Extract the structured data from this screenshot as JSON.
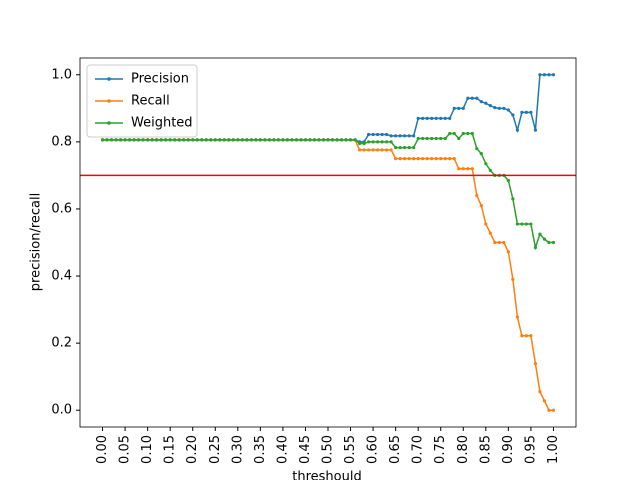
{
  "chart_data": {
    "type": "line",
    "xlabel": "threshould",
    "ylabel": "precision/recall",
    "x": [
      0,
      0.01,
      0.02,
      0.03,
      0.04,
      0.05,
      0.06,
      0.07,
      0.08,
      0.09,
      0.1,
      0.11,
      0.12,
      0.13,
      0.14,
      0.15,
      0.16,
      0.17,
      0.18,
      0.19,
      0.2,
      0.21,
      0.22,
      0.23,
      0.24,
      0.25,
      0.26,
      0.27,
      0.28,
      0.29,
      0.3,
      0.31,
      0.32,
      0.33,
      0.34,
      0.35,
      0.36,
      0.37,
      0.38,
      0.39,
      0.4,
      0.41,
      0.42,
      0.43,
      0.44,
      0.45,
      0.46,
      0.47,
      0.48,
      0.49,
      0.5,
      0.51,
      0.52,
      0.53,
      0.54,
      0.55,
      0.56,
      0.57,
      0.58,
      0.59,
      0.6,
      0.61,
      0.62,
      0.63,
      0.64,
      0.65,
      0.66,
      0.67,
      0.68,
      0.69,
      0.7,
      0.71,
      0.72,
      0.73,
      0.74,
      0.75,
      0.76,
      0.77,
      0.78,
      0.79,
      0.8,
      0.81,
      0.82,
      0.83,
      0.84,
      0.85,
      0.86,
      0.87,
      0.88,
      0.89,
      0.9,
      0.91,
      0.92,
      0.93,
      0.94,
      0.95,
      0.96,
      0.97,
      0.98,
      0.99,
      1
    ],
    "series": [
      {
        "name": "Precision",
        "color": "#1f77b4",
        "values": [
          0.806,
          0.806,
          0.806,
          0.806,
          0.806,
          0.806,
          0.806,
          0.806,
          0.806,
          0.806,
          0.806,
          0.806,
          0.806,
          0.806,
          0.806,
          0.806,
          0.806,
          0.806,
          0.806,
          0.806,
          0.806,
          0.806,
          0.806,
          0.806,
          0.806,
          0.806,
          0.806,
          0.806,
          0.806,
          0.806,
          0.806,
          0.806,
          0.806,
          0.806,
          0.806,
          0.806,
          0.806,
          0.806,
          0.806,
          0.806,
          0.806,
          0.806,
          0.806,
          0.806,
          0.806,
          0.806,
          0.806,
          0.806,
          0.806,
          0.806,
          0.806,
          0.806,
          0.806,
          0.806,
          0.806,
          0.806,
          0.806,
          0.8,
          0.8,
          0.822,
          0.822,
          0.822,
          0.822,
          0.822,
          0.818,
          0.818,
          0.818,
          0.818,
          0.818,
          0.818,
          0.87,
          0.87,
          0.87,
          0.87,
          0.87,
          0.87,
          0.87,
          0.87,
          0.9,
          0.9,
          0.9,
          0.93,
          0.93,
          0.93,
          0.92,
          0.915,
          0.908,
          0.902,
          0.9,
          0.9,
          0.895,
          0.88,
          0.835,
          0.888,
          0.888,
          0.888,
          0.835,
          1.0,
          1.0,
          1.0,
          1.0
        ]
      },
      {
        "name": "Recall",
        "color": "#ff7f0e",
        "values": [
          0.806,
          0.806,
          0.806,
          0.806,
          0.806,
          0.806,
          0.806,
          0.806,
          0.806,
          0.806,
          0.806,
          0.806,
          0.806,
          0.806,
          0.806,
          0.806,
          0.806,
          0.806,
          0.806,
          0.806,
          0.806,
          0.806,
          0.806,
          0.806,
          0.806,
          0.806,
          0.806,
          0.806,
          0.806,
          0.806,
          0.806,
          0.806,
          0.806,
          0.806,
          0.806,
          0.806,
          0.806,
          0.806,
          0.806,
          0.806,
          0.806,
          0.806,
          0.806,
          0.806,
          0.806,
          0.806,
          0.806,
          0.806,
          0.806,
          0.806,
          0.806,
          0.806,
          0.806,
          0.806,
          0.806,
          0.806,
          0.806,
          0.776,
          0.776,
          0.776,
          0.776,
          0.776,
          0.776,
          0.776,
          0.776,
          0.75,
          0.75,
          0.75,
          0.75,
          0.75,
          0.75,
          0.75,
          0.75,
          0.75,
          0.75,
          0.75,
          0.75,
          0.75,
          0.75,
          0.72,
          0.72,
          0.72,
          0.72,
          0.64,
          0.61,
          0.555,
          0.528,
          0.5,
          0.5,
          0.5,
          0.472,
          0.39,
          0.278,
          0.222,
          0.222,
          0.222,
          0.139,
          0.055,
          0.028,
          0,
          0
        ]
      },
      {
        "name": "Weighted",
        "color": "#2ca02c",
        "values": [
          0.806,
          0.806,
          0.806,
          0.806,
          0.806,
          0.806,
          0.806,
          0.806,
          0.806,
          0.806,
          0.806,
          0.806,
          0.806,
          0.806,
          0.806,
          0.806,
          0.806,
          0.806,
          0.806,
          0.806,
          0.806,
          0.806,
          0.806,
          0.806,
          0.806,
          0.806,
          0.806,
          0.806,
          0.806,
          0.806,
          0.806,
          0.806,
          0.806,
          0.806,
          0.806,
          0.806,
          0.806,
          0.806,
          0.806,
          0.806,
          0.806,
          0.806,
          0.806,
          0.806,
          0.806,
          0.806,
          0.806,
          0.806,
          0.806,
          0.806,
          0.806,
          0.806,
          0.806,
          0.806,
          0.806,
          0.806,
          0.806,
          0.795,
          0.795,
          0.8,
          0.8,
          0.8,
          0.8,
          0.8,
          0.8,
          0.783,
          0.783,
          0.783,
          0.783,
          0.783,
          0.81,
          0.81,
          0.81,
          0.81,
          0.81,
          0.81,
          0.81,
          0.825,
          0.825,
          0.81,
          0.825,
          0.825,
          0.825,
          0.78,
          0.765,
          0.735,
          0.715,
          0.7,
          0.7,
          0.7,
          0.685,
          0.63,
          0.555,
          0.555,
          0.555,
          0.555,
          0.485,
          0.525,
          0.51,
          0.5,
          0.5
        ]
      }
    ],
    "hline": {
      "y": 0.7,
      "color": "#ff0000"
    },
    "xlim": [
      -0.05,
      1.05
    ],
    "ylim": [
      -0.05,
      1.05
    ],
    "xticks": [
      {
        "value": 0,
        "label": "0.00"
      },
      {
        "value": 0.05,
        "label": "0.05"
      },
      {
        "value": 0.1,
        "label": "0.10"
      },
      {
        "value": 0.15,
        "label": "0.15"
      },
      {
        "value": 0.2,
        "label": "0.20"
      },
      {
        "value": 0.25,
        "label": "0.25"
      },
      {
        "value": 0.3,
        "label": "0.30"
      },
      {
        "value": 0.35,
        "label": "0.35"
      },
      {
        "value": 0.4,
        "label": "0.40"
      },
      {
        "value": 0.45,
        "label": "0.45"
      },
      {
        "value": 0.5,
        "label": "0.50"
      },
      {
        "value": 0.55,
        "label": "0.55"
      },
      {
        "value": 0.6,
        "label": "0.60"
      },
      {
        "value": 0.65,
        "label": "0.65"
      },
      {
        "value": 0.7,
        "label": "0.70"
      },
      {
        "value": 0.75,
        "label": "0.75"
      },
      {
        "value": 0.8,
        "label": "0.80"
      },
      {
        "value": 0.85,
        "label": "0.85"
      },
      {
        "value": 0.9,
        "label": "0.90"
      },
      {
        "value": 0.95,
        "label": "0.95"
      },
      {
        "value": 1,
        "label": "1.00"
      }
    ],
    "yticks": [
      {
        "value": 0,
        "label": "0.0"
      },
      {
        "value": 0.2,
        "label": "0.2"
      },
      {
        "value": 0.4,
        "label": "0.4"
      },
      {
        "value": 0.6,
        "label": "0.6"
      },
      {
        "value": 0.8,
        "label": "0.8"
      },
      {
        "value": 1,
        "label": "1.0"
      }
    ],
    "legend": "upper left",
    "grid": false
  }
}
